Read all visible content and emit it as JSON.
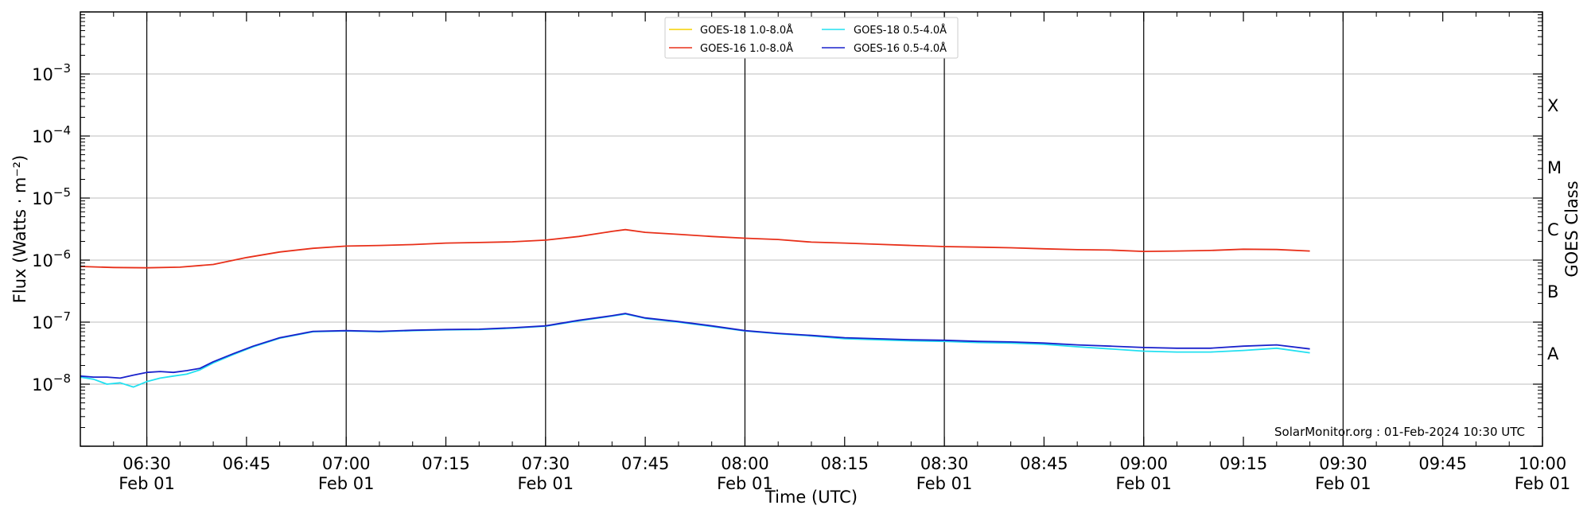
{
  "chart_data": {
    "type": "line",
    "xlabel": "Time (UTC)",
    "ylabel": "Flux (Watts · m⁻²)",
    "ylabel_right": "GOES Class",
    "credit": "SolarMonitor.org : 01-Feb-2024 10:30 UTC",
    "x_range_minutes": [
      -10,
      210
    ],
    "x_origin_label": "06:30 Feb 01",
    "y_scale": "log",
    "y_log_range": [
      -9,
      -2
    ],
    "grid": "horizontal",
    "legend_position": "top-center",
    "x_ticks": [
      {
        "m": 0,
        "label": "06:30",
        "sub": "Feb 01"
      },
      {
        "m": 15,
        "label": "06:45",
        "sub": ""
      },
      {
        "m": 30,
        "label": "07:00",
        "sub": "Feb 01"
      },
      {
        "m": 45,
        "label": "07:15",
        "sub": ""
      },
      {
        "m": 60,
        "label": "07:30",
        "sub": "Feb 01"
      },
      {
        "m": 75,
        "label": "07:45",
        "sub": ""
      },
      {
        "m": 90,
        "label": "08:00",
        "sub": "Feb 01"
      },
      {
        "m": 105,
        "label": "08:15",
        "sub": ""
      },
      {
        "m": 120,
        "label": "08:30",
        "sub": "Feb 01"
      },
      {
        "m": 135,
        "label": "08:45",
        "sub": ""
      },
      {
        "m": 150,
        "label": "09:00",
        "sub": "Feb 01"
      },
      {
        "m": 165,
        "label": "09:15",
        "sub": ""
      },
      {
        "m": 180,
        "label": "09:30",
        "sub": "Feb 01"
      },
      {
        "m": 195,
        "label": "09:45",
        "sub": ""
      },
      {
        "m": 210,
        "label": "10:00",
        "sub": "Feb 01"
      }
    ],
    "y_ticks": [
      {
        "e": -8,
        "label": "10",
        "exp": "−8"
      },
      {
        "e": -7,
        "label": "10",
        "exp": "−7"
      },
      {
        "e": -6,
        "label": "10",
        "exp": "−6"
      },
      {
        "e": -5,
        "label": "10",
        "exp": "−5"
      },
      {
        "e": -4,
        "label": "10",
        "exp": "−4"
      },
      {
        "e": -3,
        "label": "10",
        "exp": "−3"
      }
    ],
    "class_labels": [
      {
        "e": -7.5,
        "label": "A"
      },
      {
        "e": -6.5,
        "label": "B"
      },
      {
        "e": -5.5,
        "label": "C"
      },
      {
        "e": -4.5,
        "label": "M"
      },
      {
        "e": -3.5,
        "label": "X"
      }
    ],
    "series": [
      {
        "name": "GOES-18 1.0-8.0Å",
        "color": "#f5d000",
        "x": [],
        "y": []
      },
      {
        "name": "GOES-16 1.0-8.0Å",
        "color": "#e8301a",
        "x": [
          -10,
          -5,
          0,
          5,
          10,
          15,
          20,
          25,
          30,
          35,
          40,
          45,
          50,
          55,
          60,
          65,
          70,
          72,
          75,
          80,
          85,
          90,
          95,
          100,
          105,
          110,
          115,
          120,
          125,
          130,
          135,
          140,
          145,
          150,
          155,
          160,
          165,
          170,
          175
        ],
        "y": [
          7.9e-07,
          7.6e-07,
          7.5e-07,
          7.7e-07,
          8.5e-07,
          1.1e-06,
          1.35e-06,
          1.55e-06,
          1.68e-06,
          1.72e-06,
          1.78e-06,
          1.88e-06,
          1.92e-06,
          1.97e-06,
          2.1e-06,
          2.4e-06,
          2.9e-06,
          3.1e-06,
          2.8e-06,
          2.6e-06,
          2.4e-06,
          2.25e-06,
          2.15e-06,
          1.95e-06,
          1.88e-06,
          1.8e-06,
          1.72e-06,
          1.65e-06,
          1.62e-06,
          1.58e-06,
          1.52e-06,
          1.47e-06,
          1.45e-06,
          1.38e-06,
          1.4e-06,
          1.43e-06,
          1.5e-06,
          1.48e-06,
          1.4e-06
        ]
      },
      {
        "name": "GOES-18 0.5-4.0Å",
        "color": "#22e0f0",
        "x": [
          -10,
          -8,
          -6,
          -4,
          -2,
          0,
          2,
          4,
          6,
          8,
          10,
          13,
          16,
          20,
          25,
          30,
          35,
          40,
          45,
          50,
          55,
          60,
          65,
          70,
          72,
          75,
          80,
          85,
          90,
          95,
          100,
          105,
          110,
          115,
          120,
          125,
          130,
          135,
          140,
          145,
          150,
          155,
          160,
          165,
          170,
          175
        ],
        "y": [
          1.3e-08,
          1.2e-08,
          1e-08,
          1.05e-08,
          9e-09,
          1.1e-08,
          1.25e-08,
          1.35e-08,
          1.45e-08,
          1.7e-08,
          2.2e-08,
          3e-08,
          4e-08,
          5.5e-08,
          7e-08,
          7.2e-08,
          7e-08,
          7.3e-08,
          7.5e-08,
          7.6e-08,
          8e-08,
          8.6e-08,
          1.05e-07,
          1.25e-07,
          1.35e-07,
          1.15e-07,
          1e-07,
          8.5e-08,
          7.2e-08,
          6.5e-08,
          6e-08,
          5.4e-08,
          5.2e-08,
          5e-08,
          4.9e-08,
          4.7e-08,
          4.6e-08,
          4.4e-08,
          4e-08,
          3.7e-08,
          3.4e-08,
          3.3e-08,
          3.3e-08,
          3.5e-08,
          3.8e-08,
          3.2e-08
        ]
      },
      {
        "name": "GOES-16 0.5-4.0Å",
        "color": "#1a22cc",
        "x": [
          -10,
          -8,
          -6,
          -4,
          -2,
          0,
          2,
          4,
          6,
          8,
          10,
          13,
          16,
          20,
          25,
          30,
          35,
          40,
          45,
          50,
          55,
          60,
          65,
          70,
          72,
          75,
          80,
          85,
          90,
          95,
          100,
          105,
          110,
          115,
          120,
          125,
          130,
          135,
          140,
          145,
          150,
          155,
          160,
          165,
          170,
          175
        ],
        "y": [
          1.35e-08,
          1.3e-08,
          1.3e-08,
          1.25e-08,
          1.4e-08,
          1.55e-08,
          1.6e-08,
          1.55e-08,
          1.65e-08,
          1.8e-08,
          2.3e-08,
          3.1e-08,
          4.1e-08,
          5.6e-08,
          7.1e-08,
          7.3e-08,
          7.1e-08,
          7.4e-08,
          7.6e-08,
          7.7e-08,
          8.1e-08,
          8.7e-08,
          1.07e-07,
          1.27e-07,
          1.38e-07,
          1.17e-07,
          1.02e-07,
          8.7e-08,
          7.3e-08,
          6.6e-08,
          6.1e-08,
          5.6e-08,
          5.4e-08,
          5.2e-08,
          5.1e-08,
          4.9e-08,
          4.8e-08,
          4.6e-08,
          4.3e-08,
          4.1e-08,
          3.9e-08,
          3.8e-08,
          3.8e-08,
          4.1e-08,
          4.3e-08,
          3.7e-08
        ]
      }
    ]
  }
}
